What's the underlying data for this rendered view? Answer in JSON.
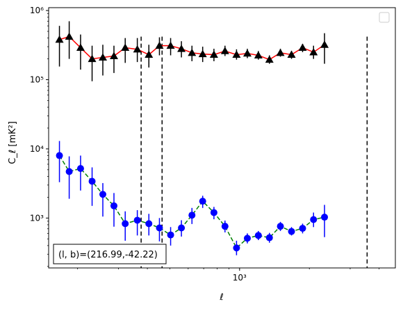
{
  "chart_data": {
    "type": "scatter",
    "xlabel": "ℓ",
    "ylabel": "C_ℓ  [mK²]",
    "x_scale": "log",
    "y_scale": "log",
    "xlim": [
      150,
      4700
    ],
    "ylim": [
      190,
      1100000
    ],
    "y_ticks": [
      {
        "value": 1000,
        "label": "10³"
      },
      {
        "value": 10000,
        "label": "10⁴"
      },
      {
        "value": 100000,
        "label": "10⁵"
      },
      {
        "value": 1000000,
        "label": "10⁶"
      }
    ],
    "x_ticks": [
      {
        "value": 1000,
        "label": "10³"
      }
    ],
    "annotation": "(l, b)=(216.99,-42.22)",
    "legend": "top-right, empty",
    "vlines": [
      376,
      463,
      3550
    ],
    "series": [
      {
        "marker": "triangle",
        "color": "#000000",
        "line_color": "#ff0000",
        "line_style": "solid",
        "points": [
          {
            "x": 167,
            "y": 380000,
            "lo": 155000,
            "hi": 600000
          },
          {
            "x": 184,
            "y": 420000,
            "lo": 200000,
            "hi": 700000
          },
          {
            "x": 206,
            "y": 290000,
            "lo": 140000,
            "hi": 450000
          },
          {
            "x": 231,
            "y": 200000,
            "lo": 95000,
            "hi": 310000
          },
          {
            "x": 257,
            "y": 210000,
            "lo": 115000,
            "hi": 320000
          },
          {
            "x": 287,
            "y": 220000,
            "lo": 125000,
            "hi": 310000
          },
          {
            "x": 321,
            "y": 290000,
            "lo": 175000,
            "hi": 400000
          },
          {
            "x": 362,
            "y": 275000,
            "lo": 180000,
            "hi": 400000
          },
          {
            "x": 406,
            "y": 230000,
            "lo": 150000,
            "hi": 320000
          },
          {
            "x": 451,
            "y": 310000,
            "lo": 225000,
            "hi": 410000
          },
          {
            "x": 504,
            "y": 310000,
            "lo": 225000,
            "hi": 400000
          },
          {
            "x": 561,
            "y": 280000,
            "lo": 210000,
            "hi": 360000
          },
          {
            "x": 623,
            "y": 245000,
            "lo": 185000,
            "hi": 310000
          },
          {
            "x": 693,
            "y": 235000,
            "lo": 180000,
            "hi": 300000
          },
          {
            "x": 775,
            "y": 230000,
            "lo": 185000,
            "hi": 280000
          },
          {
            "x": 865,
            "y": 260000,
            "lo": 220000,
            "hi": 310000
          },
          {
            "x": 970,
            "y": 230000,
            "lo": 195000,
            "hi": 275000
          },
          {
            "x": 1080,
            "y": 240000,
            "lo": 205000,
            "hi": 280000
          },
          {
            "x": 1205,
            "y": 225000,
            "lo": 195000,
            "hi": 260000
          },
          {
            "x": 1345,
            "y": 195000,
            "lo": 170000,
            "hi": 225000
          },
          {
            "x": 1500,
            "y": 245000,
            "lo": 215000,
            "hi": 280000
          },
          {
            "x": 1675,
            "y": 230000,
            "lo": 200000,
            "hi": 260000
          },
          {
            "x": 1870,
            "y": 290000,
            "lo": 250000,
            "hi": 330000
          },
          {
            "x": 2085,
            "y": 250000,
            "lo": 200000,
            "hi": 310000
          },
          {
            "x": 2325,
            "y": 320000,
            "lo": 170000,
            "hi": 470000
          }
        ]
      },
      {
        "marker": "circle",
        "color": "#0000ff",
        "line_color": "#008000",
        "line_style": "dashed",
        "points": [
          {
            "x": 167,
            "y": 8000,
            "lo": 3300,
            "hi": 13000
          },
          {
            "x": 184,
            "y": 4700,
            "lo": 1900,
            "hi": 7800
          },
          {
            "x": 206,
            "y": 5200,
            "lo": 2500,
            "hi": 8000
          },
          {
            "x": 231,
            "y": 3400,
            "lo": 1500,
            "hi": 5400
          },
          {
            "x": 257,
            "y": 2200,
            "lo": 1050,
            "hi": 3200
          },
          {
            "x": 287,
            "y": 1500,
            "lo": 750,
            "hi": 2300
          },
          {
            "x": 321,
            "y": 830,
            "lo": 470,
            "hi": 1250
          },
          {
            "x": 362,
            "y": 930,
            "lo": 560,
            "hi": 1300
          },
          {
            "x": 406,
            "y": 830,
            "lo": 560,
            "hi": 1150
          },
          {
            "x": 451,
            "y": 720,
            "lo": 460,
            "hi": 1000
          },
          {
            "x": 504,
            "y": 570,
            "lo": 400,
            "hi": 740
          },
          {
            "x": 561,
            "y": 720,
            "lo": 540,
            "hi": 930
          },
          {
            "x": 623,
            "y": 1100,
            "lo": 820,
            "hi": 1400
          },
          {
            "x": 693,
            "y": 1750,
            "lo": 1400,
            "hi": 2100
          },
          {
            "x": 775,
            "y": 1200,
            "lo": 960,
            "hi": 1450
          },
          {
            "x": 865,
            "y": 760,
            "lo": 620,
            "hi": 920
          },
          {
            "x": 970,
            "y": 370,
            "lo": 290,
            "hi": 470
          },
          {
            "x": 1080,
            "y": 510,
            "lo": 430,
            "hi": 600
          },
          {
            "x": 1205,
            "y": 560,
            "lo": 480,
            "hi": 650
          },
          {
            "x": 1345,
            "y": 520,
            "lo": 440,
            "hi": 610
          },
          {
            "x": 1500,
            "y": 760,
            "lo": 650,
            "hi": 880
          },
          {
            "x": 1675,
            "y": 640,
            "lo": 560,
            "hi": 740
          },
          {
            "x": 1870,
            "y": 710,
            "lo": 600,
            "hi": 830
          },
          {
            "x": 2085,
            "y": 950,
            "lo": 740,
            "hi": 1200
          },
          {
            "x": 2325,
            "y": 1030,
            "lo": 530,
            "hi": 1550
          }
        ]
      }
    ]
  }
}
